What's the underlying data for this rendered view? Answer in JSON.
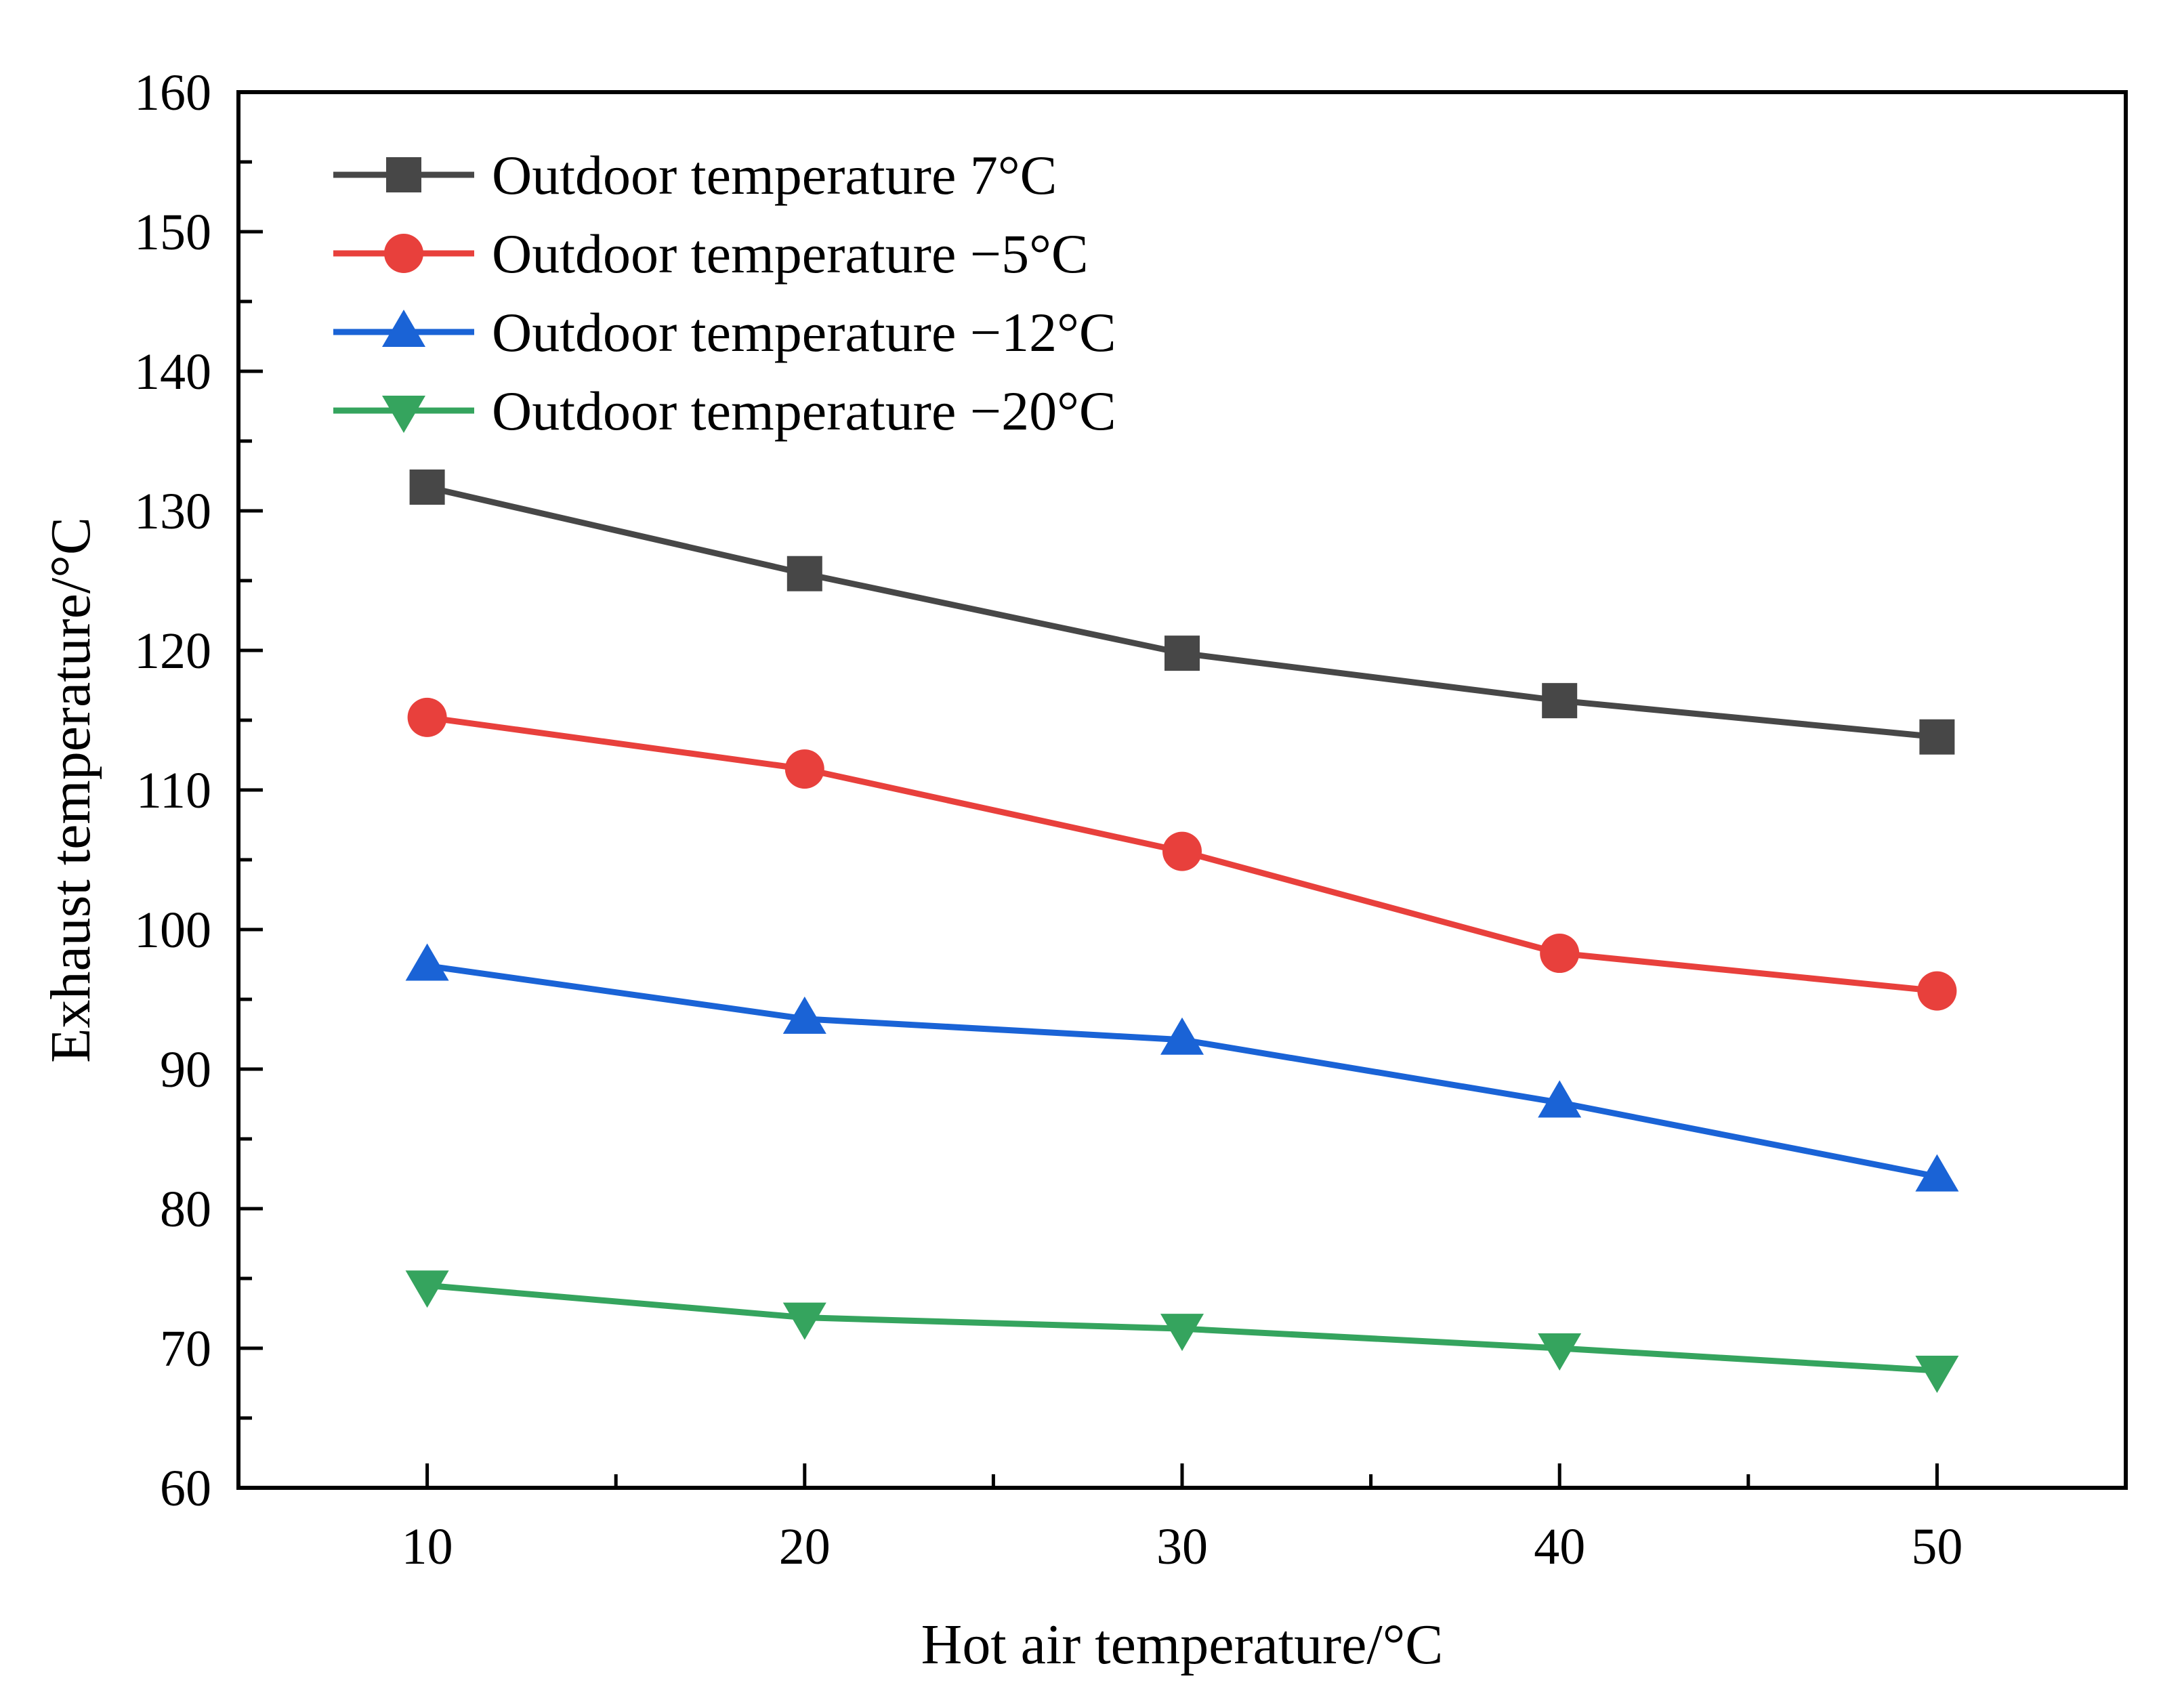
{
  "chart_data": {
    "type": "line",
    "title": "",
    "xlabel": "Hot air temperature/°C",
    "ylabel": "Exhaust temperature/°C",
    "xlim": [
      5,
      55
    ],
    "ylim": [
      60,
      160
    ],
    "x_ticks": [
      10,
      20,
      30,
      40,
      50
    ],
    "y_ticks": [
      60,
      70,
      80,
      90,
      100,
      110,
      120,
      130,
      140,
      150,
      160
    ],
    "x": [
      10,
      20,
      30,
      40,
      50
    ],
    "legend_position": "top-left",
    "grid": false,
    "series": [
      {
        "name": "Outdoor temperature 7°C",
        "marker": "square",
        "color": "#474747",
        "values": [
          131.7,
          125.5,
          119.8,
          116.4,
          113.8
        ]
      },
      {
        "name": "Outdoor temperature −5°C",
        "marker": "circle",
        "color": "#e8403c",
        "values": [
          115.2,
          111.5,
          105.6,
          98.3,
          95.6
        ]
      },
      {
        "name": "Outdoor temperature −12°C",
        "marker": "triangle-up",
        "color": "#1a63d6",
        "values": [
          97.4,
          93.6,
          92.1,
          87.6,
          82.3
        ]
      },
      {
        "name": "Outdoor temperature −20°C",
        "marker": "triangle-down",
        "color": "#35a45e",
        "values": [
          74.5,
          72.2,
          71.4,
          70.0,
          68.4
        ]
      }
    ]
  }
}
